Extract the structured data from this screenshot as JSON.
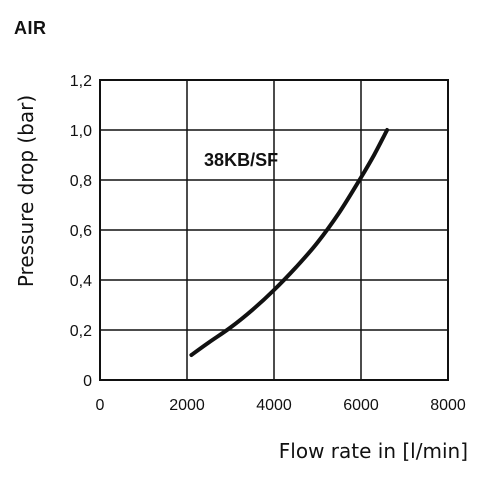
{
  "header": {
    "title": "AIR"
  },
  "chart_data": {
    "type": "line",
    "title": "AIR",
    "xlabel": "Flow rate in [l/min]",
    "ylabel": "Pressure drop (bar)",
    "xlim": [
      0,
      8000
    ],
    "ylim": [
      0,
      1.2
    ],
    "x_ticks": [
      0,
      2000,
      4000,
      6000,
      8000
    ],
    "x_tick_labels": [
      "0",
      "2000",
      "4000",
      "6000",
      "8000"
    ],
    "y_ticks": [
      0,
      0.2,
      0.4,
      0.6,
      0.8,
      1.0,
      1.2
    ],
    "y_tick_labels": [
      "0",
      "0,2",
      "0,4",
      "0,6",
      "0,8",
      "1,0",
      "1,2"
    ],
    "grid": true,
    "series": [
      {
        "x": [
          2100,
          2500,
          3000,
          3500,
          4000,
          4500,
          5000,
          5500,
          6000,
          6300,
          6600
        ],
        "y": [
          0.1,
          0.15,
          0.21,
          0.28,
          0.36,
          0.45,
          0.55,
          0.67,
          0.81,
          0.9,
          1.0
        ],
        "color": "#111111"
      }
    ],
    "annotations": [
      {
        "text": "38KB/SF",
        "x": 2300,
        "y": 0.88
      }
    ]
  }
}
